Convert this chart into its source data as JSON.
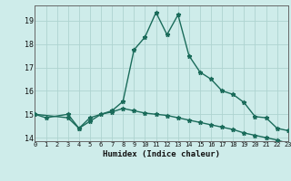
{
  "xlabel": "Humidex (Indice chaleur)",
  "background_color": "#ceecea",
  "line_color": "#1a6b5a",
  "grid_color": "#aed4d0",
  "curve1_x": [
    0,
    1,
    3,
    4,
    5,
    7,
    8,
    9,
    10,
    11,
    12,
    13,
    14,
    15,
    16,
    17,
    18,
    19,
    20,
    21,
    22,
    23
  ],
  "curve1_y": [
    15.0,
    14.85,
    15.0,
    14.4,
    14.85,
    15.15,
    15.55,
    17.75,
    18.3,
    19.35,
    18.4,
    19.25,
    17.5,
    16.8,
    16.5,
    16.0,
    15.85,
    15.5,
    14.9,
    14.85,
    14.4,
    14.3
  ],
  "curve2_x": [
    0,
    3,
    4,
    5,
    6,
    7,
    8,
    9,
    10,
    11,
    12,
    13,
    14,
    15,
    16,
    17,
    18,
    19,
    20,
    21,
    22,
    23
  ],
  "curve2_y": [
    15.0,
    14.85,
    14.4,
    14.7,
    15.0,
    15.1,
    15.25,
    15.15,
    15.05,
    15.0,
    14.95,
    14.85,
    14.75,
    14.65,
    14.55,
    14.45,
    14.35,
    14.2,
    14.1,
    14.0,
    13.9,
    13.75
  ],
  "xlim": [
    0,
    23
  ],
  "ylim": [
    13.85,
    19.65
  ],
  "yticks": [
    14,
    15,
    16,
    17,
    18,
    19
  ],
  "xticks": [
    0,
    1,
    2,
    3,
    4,
    5,
    6,
    7,
    8,
    9,
    10,
    11,
    12,
    13,
    14,
    15,
    16,
    17,
    18,
    19,
    20,
    21,
    22,
    23
  ]
}
